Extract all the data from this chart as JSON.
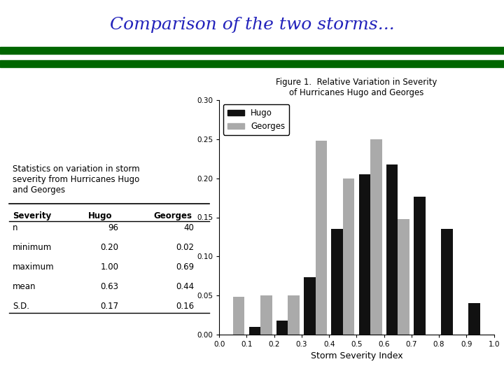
{
  "title": "Comparison of the two storms...",
  "title_color": "#2222bb",
  "title_fontsize": 18,
  "figure_bg": "#ffffff",
  "stripe_dark": "#006600",
  "stripe_light": "#33aa33",
  "chart_title_line1": "Figure 1.  Relative Variation in Severity",
  "chart_title_line2": "of Hurricanes Hugo and Georges",
  "xlabel": "Storm Severity Index",
  "ylim": [
    0.0,
    0.3
  ],
  "yticks": [
    0.0,
    0.05,
    0.1,
    0.15,
    0.2,
    0.25,
    0.3
  ],
  "xticks": [
    0.0,
    0.1,
    0.2,
    0.3,
    0.4,
    0.5,
    0.6,
    0.7,
    0.8,
    0.9,
    1.0
  ],
  "bar_centers": [
    0.05,
    0.15,
    0.25,
    0.35,
    0.45,
    0.55,
    0.65,
    0.75,
    0.85,
    0.95
  ],
  "hugo_values": [
    0.0,
    0.01,
    0.018,
    0.073,
    0.135,
    0.205,
    0.218,
    0.176,
    0.135,
    0.04
  ],
  "georges_values": [
    0.048,
    0.05,
    0.05,
    0.248,
    0.2,
    0.25,
    0.148,
    0.0,
    0.0,
    0.0
  ],
  "hugo_color": "#111111",
  "georges_color": "#aaaaaa",
  "bar_width": 0.042,
  "legend_labels": [
    "Hugo",
    "Georges"
  ],
  "sidebar_text": "Statistics on variation in storm\nseverity from Hurricanes Hugo\nand Georges",
  "table_headers": [
    "Severity",
    "Hugo",
    "Georges"
  ],
  "table_rows": [
    [
      "n",
      "96",
      "40"
    ],
    [
      "minimum",
      "0.20",
      "0.02"
    ],
    [
      "maximum",
      "1.00",
      "0.69"
    ],
    [
      "mean",
      "0.63",
      "0.44"
    ],
    [
      "S.D.",
      "0.17",
      "0.16"
    ]
  ]
}
